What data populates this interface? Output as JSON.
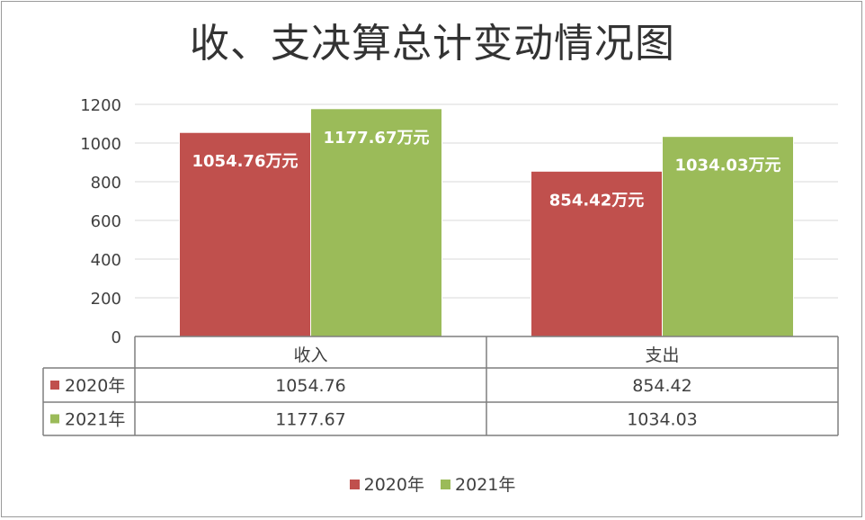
{
  "chart_data": {
    "type": "bar",
    "title": "收、支决算总计变动情况图",
    "categories": [
      "收入",
      "支出"
    ],
    "series": [
      {
        "name": "2020年",
        "values": [
          1054.76,
          854.42
        ],
        "color": "#c0504d",
        "data_labels": [
          "1054.76万元",
          "854.42万元"
        ],
        "table_values": [
          "1054.76",
          "854.42"
        ]
      },
      {
        "name": "2021年",
        "values": [
          1177.67,
          1034.03
        ],
        "color": "#9bbb59",
        "data_labels": [
          "1177.67万元",
          "1034.03万元"
        ],
        "table_values": [
          "1177.67",
          "1034.03"
        ]
      }
    ],
    "y_ticks": [
      "0",
      "200",
      "400",
      "600",
      "800",
      "1000",
      "1200"
    ],
    "ylim": [
      0,
      1200
    ],
    "grid": true,
    "data_table": true,
    "legend_position": "bottom"
  }
}
